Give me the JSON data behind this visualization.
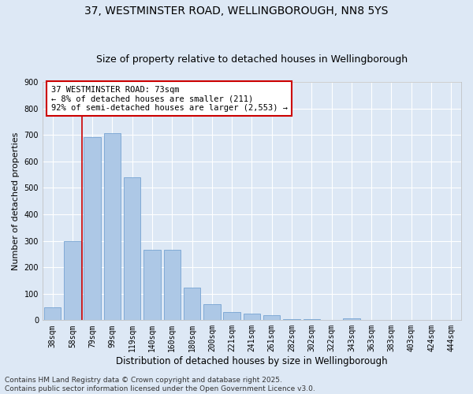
{
  "title": "37, WESTMINSTER ROAD, WELLINGBOROUGH, NN8 5YS",
  "subtitle": "Size of property relative to detached houses in Wellingborough",
  "xlabel": "Distribution of detached houses by size in Wellingborough",
  "ylabel": "Number of detached properties",
  "categories": [
    "38sqm",
    "58sqm",
    "79sqm",
    "99sqm",
    "119sqm",
    "140sqm",
    "160sqm",
    "180sqm",
    "200sqm",
    "221sqm",
    "241sqm",
    "261sqm",
    "282sqm",
    "302sqm",
    "322sqm",
    "343sqm",
    "363sqm",
    "383sqm",
    "403sqm",
    "424sqm",
    "444sqm"
  ],
  "values": [
    48,
    300,
    693,
    707,
    540,
    265,
    265,
    122,
    62,
    30,
    25,
    18,
    3,
    3,
    0,
    8,
    0,
    2,
    0,
    0,
    1
  ],
  "bar_color": "#adc8e6",
  "bar_edge_color": "#6699cc",
  "background_color": "#dde8f5",
  "plot_bg_color": "#dde8f5",
  "grid_color": "#ffffff",
  "ref_line_x": 1.5,
  "ref_line_color": "#cc0000",
  "annotation_text": "37 WESTMINSTER ROAD: 73sqm\n← 8% of detached houses are smaller (211)\n92% of semi-detached houses are larger (2,553) →",
  "annotation_box_color": "#cc0000",
  "footer": "Contains HM Land Registry data © Crown copyright and database right 2025.\nContains public sector information licensed under the Open Government Licence v3.0.",
  "ylim": [
    0,
    900
  ],
  "yticks": [
    0,
    100,
    200,
    300,
    400,
    500,
    600,
    700,
    800,
    900
  ],
  "title_fontsize": 10,
  "subtitle_fontsize": 9,
  "xlabel_fontsize": 8.5,
  "ylabel_fontsize": 8,
  "tick_fontsize": 7,
  "footer_fontsize": 6.5,
  "annotation_fontsize": 7.5
}
